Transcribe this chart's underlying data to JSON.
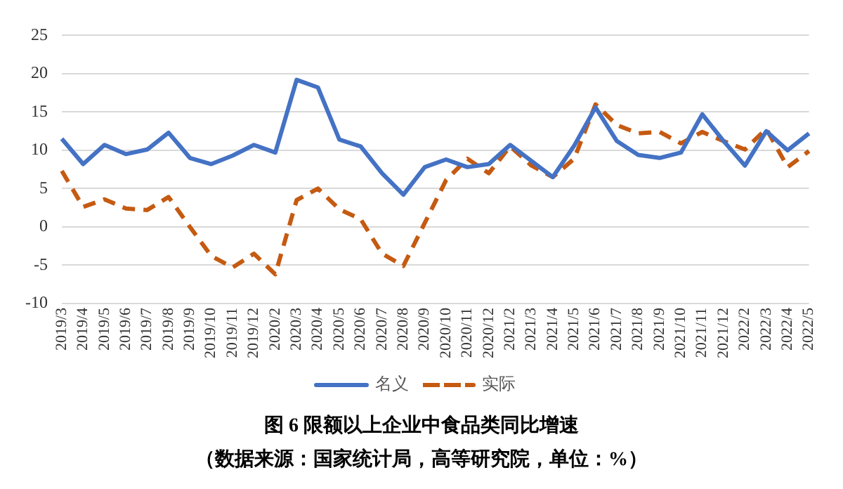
{
  "chart_data": {
    "type": "line",
    "title": "图 6 限额以上企业中食品类同比增速",
    "subtitle": "（数据来源：国家统计局，高等研究院，单位：%）",
    "categories": [
      "2019/3",
      "2019/4",
      "2019/5",
      "2019/6",
      "2019/7",
      "2019/8",
      "2019/9",
      "2019/10",
      "2019/11",
      "2019/12",
      "2020/2",
      "2020/3",
      "2020/4",
      "2020/5",
      "2020/6",
      "2020/7",
      "2020/8",
      "2020/9",
      "2020/10",
      "2020/11",
      "2020/12",
      "2021/2",
      "2021/3",
      "2021/4",
      "2021/5",
      "2021/6",
      "2021/7",
      "2021/8",
      "2021/9",
      "2021/10",
      "2021/11",
      "2021/12",
      "2022/2",
      "2022/3",
      "2022/4",
      "2022/5"
    ],
    "series": [
      {
        "name": "名义",
        "color": "#4472c4",
        "line_style": "solid",
        "values": [
          11.5,
          8.2,
          10.7,
          9.5,
          10.1,
          12.3,
          9.0,
          8.2,
          9.3,
          10.7,
          9.7,
          19.2,
          18.2,
          11.4,
          10.5,
          7.0,
          4.2,
          7.8,
          8.8,
          7.8,
          8.2,
          10.7,
          8.6,
          6.5,
          10.6,
          15.6,
          11.2,
          9.4,
          9.0,
          9.7,
          14.7,
          11.2,
          8.0,
          12.5,
          10.0,
          12.2
        ]
      },
      {
        "name": "实际",
        "color": "#c55a11",
        "line_style": "dashed",
        "values": [
          7.3,
          2.6,
          3.6,
          2.4,
          2.2,
          3.9,
          0.0,
          -3.8,
          -5.3,
          -3.5,
          -6.2,
          3.5,
          5.0,
          2.3,
          1.0,
          -3.5,
          -5.1,
          0.5,
          6.1,
          8.9,
          7.0,
          10.5,
          8.0,
          6.5,
          8.9,
          16.0,
          13.3,
          12.2,
          12.4,
          10.9,
          12.4,
          11.2,
          10.1,
          12.8,
          7.8,
          9.9
        ]
      }
    ],
    "ylim": [
      -10,
      25
    ],
    "yticks": [
      -10,
      -5,
      0,
      5,
      10,
      15,
      20,
      25
    ],
    "grid": "y",
    "legend": "bottom",
    "marker": "none"
  }
}
